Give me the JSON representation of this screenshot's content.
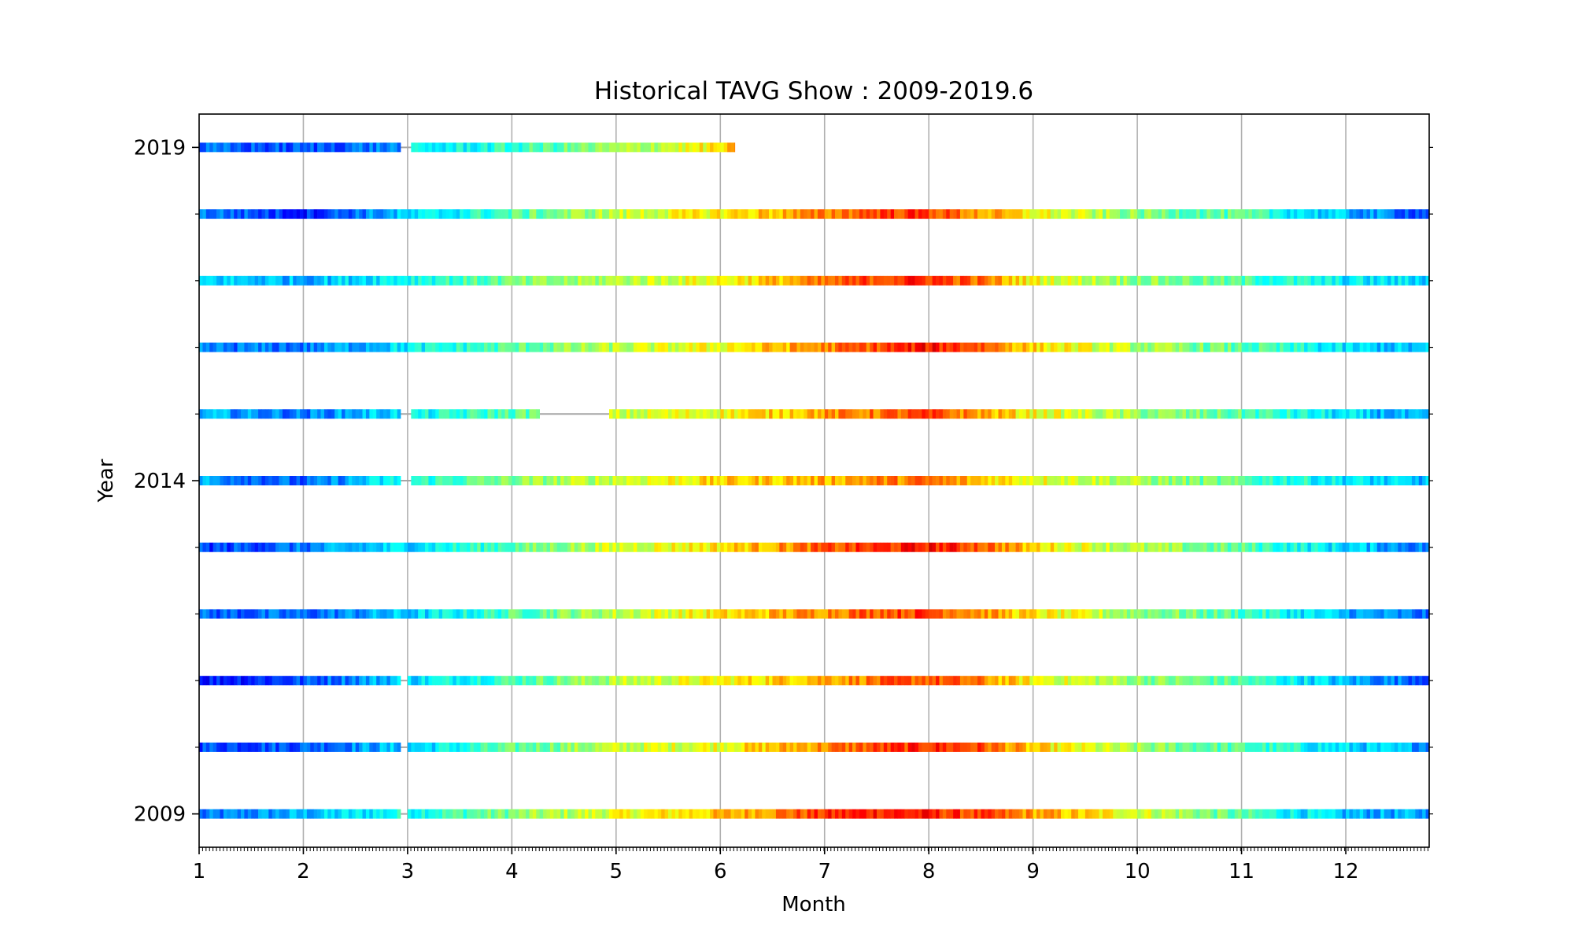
{
  "chart_data": {
    "type": "heatmap",
    "title": "Historical TAVG Show : 2009-2019.6",
    "xlabel": "Month",
    "ylabel": "Year",
    "xlim": [
      1,
      12.8
    ],
    "ylim": [
      2008.5,
      2019.5
    ],
    "x_ticks": [
      1,
      2,
      3,
      4,
      5,
      6,
      7,
      8,
      9,
      10,
      11,
      12
    ],
    "y_major_ticks": [
      2009,
      2014,
      2019
    ],
    "y_minor_ticks": [
      2010,
      2011,
      2012,
      2013,
      2015,
      2016,
      2017,
      2018
    ],
    "x_minor_tick_step": 0.0333,
    "grid": "x-major",
    "colormap": "jet",
    "colormap_stops": [
      "#00008f",
      "#0000ff",
      "#00ffff",
      "#80ff80",
      "#ffff00",
      "#ff8000",
      "#ff0000",
      "#800000"
    ],
    "series": [
      {
        "year": 2009,
        "start": 1.0,
        "end": 12.8,
        "gaps": [
          [
            2.92,
            3.0
          ]
        ],
        "profile_months": [
          1,
          2,
          3,
          4,
          5,
          6,
          7,
          7.5,
          8,
          8.5,
          9,
          10,
          11,
          12,
          12.8
        ],
        "profile_values": [
          0.22,
          0.3,
          0.4,
          0.5,
          0.6,
          0.68,
          0.82,
          0.86,
          0.84,
          0.8,
          0.72,
          0.6,
          0.45,
          0.3,
          0.28
        ]
      },
      {
        "year": 2010,
        "start": 1.0,
        "end": 12.8,
        "gaps": [
          [
            2.92,
            3.0
          ]
        ],
        "profile_months": [
          1,
          2,
          3,
          4,
          5,
          6,
          7,
          7.5,
          8,
          8.5,
          9,
          10,
          11,
          12,
          12.8
        ],
        "profile_values": [
          0.2,
          0.22,
          0.32,
          0.46,
          0.56,
          0.62,
          0.74,
          0.8,
          0.84,
          0.8,
          0.66,
          0.52,
          0.45,
          0.34,
          0.28
        ]
      },
      {
        "year": 2011,
        "start": 1.0,
        "end": 12.8,
        "gaps": [
          [
            2.92,
            3.0
          ]
        ],
        "profile_months": [
          1,
          2,
          3,
          4,
          5,
          6,
          7,
          7.5,
          8,
          8.5,
          9,
          10,
          11,
          12,
          12.8
        ],
        "profile_values": [
          0.15,
          0.2,
          0.34,
          0.45,
          0.55,
          0.62,
          0.72,
          0.76,
          0.8,
          0.74,
          0.62,
          0.52,
          0.45,
          0.3,
          0.22
        ]
      },
      {
        "year": 2012,
        "start": 1.0,
        "end": 12.8,
        "gaps": [],
        "profile_months": [
          1,
          2,
          3,
          4,
          5,
          6,
          7,
          7.5,
          8,
          8.5,
          9,
          10,
          11,
          12,
          12.8
        ],
        "profile_values": [
          0.22,
          0.22,
          0.32,
          0.45,
          0.56,
          0.64,
          0.75,
          0.8,
          0.82,
          0.74,
          0.64,
          0.52,
          0.45,
          0.3,
          0.22
        ]
      },
      {
        "year": 2013,
        "start": 1.0,
        "end": 12.8,
        "gaps": [],
        "profile_months": [
          1,
          2,
          3,
          4,
          5,
          6,
          7,
          7.5,
          8,
          8.5,
          9,
          10,
          11,
          12,
          12.8
        ],
        "profile_values": [
          0.18,
          0.24,
          0.35,
          0.46,
          0.58,
          0.65,
          0.78,
          0.82,
          0.86,
          0.8,
          0.66,
          0.54,
          0.46,
          0.34,
          0.24
        ]
      },
      {
        "year": 2014,
        "start": 1.0,
        "end": 12.8,
        "gaps": [
          [
            2.94,
            3.02
          ]
        ],
        "profile_months": [
          1,
          2,
          3,
          4,
          5,
          6,
          7,
          7.5,
          8,
          8.5,
          9,
          10,
          11,
          12,
          12.8
        ],
        "profile_values": [
          0.3,
          0.2,
          0.4,
          0.5,
          0.58,
          0.66,
          0.7,
          0.74,
          0.76,
          0.68,
          0.62,
          0.54,
          0.46,
          0.36,
          0.3
        ]
      },
      {
        "year": 2015,
        "start": 1.0,
        "end": 12.8,
        "gaps": [
          [
            2.94,
            3.02
          ],
          [
            4.25,
            4.92
          ]
        ],
        "profile_months": [
          1,
          2,
          3,
          4,
          5,
          6,
          7,
          7.5,
          8,
          8.5,
          9,
          10,
          11,
          12,
          12.8
        ],
        "profile_values": [
          0.3,
          0.24,
          0.36,
          0.46,
          0.56,
          0.62,
          0.72,
          0.76,
          0.8,
          0.72,
          0.62,
          0.52,
          0.46,
          0.34,
          0.26
        ]
      },
      {
        "year": 2016,
        "start": 1.0,
        "end": 12.8,
        "gaps": [],
        "profile_months": [
          1,
          2,
          3,
          4,
          5,
          6,
          7,
          7.5,
          8,
          8.5,
          9,
          10,
          11,
          12,
          12.8
        ],
        "profile_values": [
          0.24,
          0.24,
          0.36,
          0.46,
          0.55,
          0.62,
          0.74,
          0.8,
          0.86,
          0.8,
          0.66,
          0.54,
          0.46,
          0.34,
          0.3
        ]
      },
      {
        "year": 2017,
        "start": 1.0,
        "end": 12.8,
        "gaps": [],
        "profile_months": [
          1,
          2,
          3,
          4,
          5,
          6,
          7,
          7.5,
          8,
          8.5,
          9,
          10,
          11,
          12,
          12.8
        ],
        "profile_values": [
          0.34,
          0.3,
          0.4,
          0.48,
          0.55,
          0.62,
          0.74,
          0.82,
          0.84,
          0.76,
          0.62,
          0.52,
          0.45,
          0.36,
          0.34
        ]
      },
      {
        "year": 2018,
        "start": 1.0,
        "end": 12.8,
        "gaps": [],
        "profile_months": [
          1,
          2,
          3,
          4,
          5,
          6,
          7,
          7.5,
          8,
          8.5,
          9,
          10,
          11,
          12,
          12.8
        ],
        "profile_values": [
          0.26,
          0.16,
          0.32,
          0.45,
          0.56,
          0.64,
          0.74,
          0.82,
          0.82,
          0.72,
          0.62,
          0.5,
          0.45,
          0.3,
          0.2
        ]
      },
      {
        "year": 2019,
        "start": 1.0,
        "end": 6.14,
        "gaps": [
          [
            2.93,
            3.02
          ]
        ],
        "profile_months": [
          1,
          2,
          2.9,
          3.0,
          4,
          5,
          5.5,
          6,
          6.14
        ],
        "profile_values": [
          0.22,
          0.2,
          0.26,
          0.34,
          0.42,
          0.52,
          0.58,
          0.64,
          0.68
        ]
      }
    ]
  }
}
